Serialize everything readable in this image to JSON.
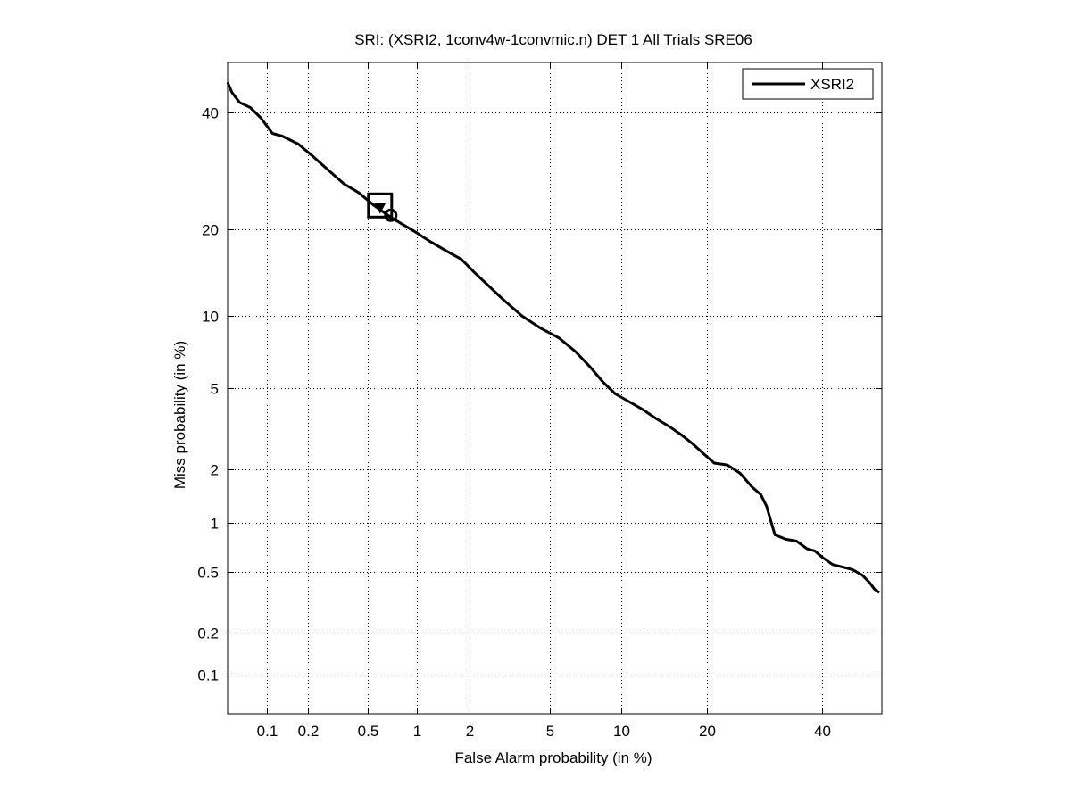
{
  "chart_data": {
    "type": "line",
    "title": "SRI: (XSRI2, 1conv4w-1convmic.n) DET 1 All Trials SRE06",
    "xlabel": "False Alarm probability (in %)",
    "ylabel": "Miss probability (in %)",
    "x_scale": "probit",
    "y_scale": "probit",
    "xlim": [
      0.05,
      52
    ],
    "ylim": [
      0.05,
      50
    ],
    "x_ticks": [
      0.1,
      0.2,
      0.5,
      1,
      2,
      5,
      10,
      20,
      40
    ],
    "x_tick_labels": [
      "0.1",
      "0.2",
      "0.5",
      "1",
      "2",
      "5",
      "10",
      "20",
      "40"
    ],
    "y_ticks": [
      0.1,
      0.2,
      0.5,
      1,
      2,
      5,
      10,
      20,
      40
    ],
    "y_tick_labels": [
      "0.1",
      "0.2",
      "0.5",
      "1",
      "2",
      "5",
      "10",
      "20",
      "40"
    ],
    "grid": true,
    "legend_position": "top-right",
    "series": [
      {
        "name": "XSRI2",
        "color": "#000000",
        "x": [
          0.05,
          0.054,
          0.062,
          0.075,
          0.09,
          0.11,
          0.13,
          0.17,
          0.21,
          0.27,
          0.35,
          0.44,
          0.55,
          0.63,
          0.72,
          0.85,
          1.0,
          1.2,
          1.5,
          1.8,
          2.1,
          2.5,
          3.0,
          3.7,
          4.5,
          5.5,
          6.5,
          7.5,
          8.5,
          9.5,
          10.5,
          12.0,
          13.5,
          15.0,
          16.5,
          18.0,
          19.5,
          21.0,
          23.0,
          25.0,
          27.0,
          28.5,
          29.5,
          30.0,
          31.0,
          33.0,
          35.0,
          37.0,
          38.5,
          40.0,
          42.0,
          44.0,
          46.0,
          48.0,
          49.5,
          50.5,
          51.5
        ],
        "y": [
          46.0,
          44.0,
          42.0,
          41.0,
          39.0,
          36.0,
          35.5,
          34.0,
          32.0,
          29.5,
          27.0,
          25.5,
          23.5,
          22.5,
          21.5,
          20.5,
          19.5,
          18.3,
          17.0,
          16.0,
          14.5,
          13.0,
          11.5,
          10.0,
          9.0,
          8.2,
          7.2,
          6.2,
          5.3,
          4.7,
          4.4,
          4.0,
          3.6,
          3.3,
          3.0,
          2.7,
          2.4,
          2.15,
          2.1,
          1.9,
          1.6,
          1.45,
          1.25,
          1.1,
          0.85,
          0.8,
          0.78,
          0.7,
          0.68,
          0.62,
          0.56,
          0.54,
          0.52,
          0.48,
          0.43,
          0.39,
          0.37
        ]
      }
    ],
    "markers": [
      {
        "shape": "square",
        "x": 0.6,
        "y": 23.5
      },
      {
        "shape": "triangle-down",
        "x": 0.6,
        "y": 23.2
      },
      {
        "shape": "circle",
        "x": 0.7,
        "y": 22.0
      }
    ]
  }
}
